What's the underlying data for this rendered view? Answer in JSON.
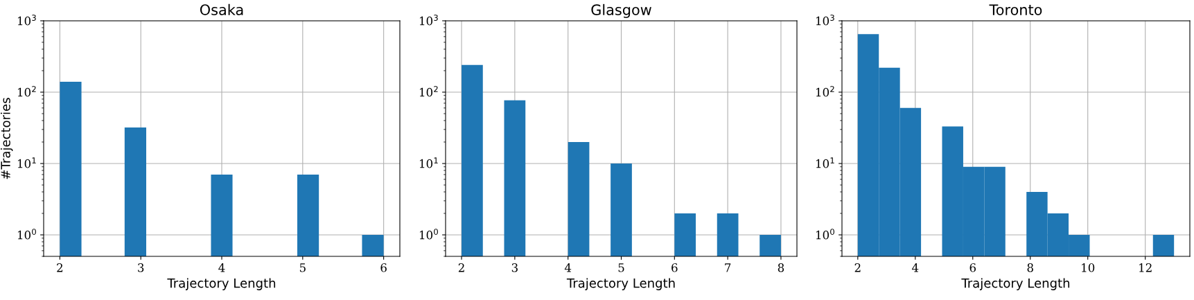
{
  "chart_data": [
    {
      "type": "histogram",
      "title": "Osaka",
      "xlabel": "Trajectory Length",
      "ylabel": "#Trajectories",
      "color": "#1f77b4",
      "log": true,
      "grid": true,
      "bins": [
        2,
        2.267,
        2.533,
        2.8,
        3.067,
        3.333,
        3.6,
        3.867,
        4.133,
        4.4,
        4.667,
        4.933,
        5.2,
        5.467,
        5.733,
        6
      ],
      "values": [
        140,
        null,
        null,
        32,
        null,
        null,
        null,
        7,
        null,
        null,
        null,
        7,
        null,
        null,
        1
      ],
      "xlim": [
        1.8,
        6.2
      ],
      "xticks": [
        2,
        3,
        4,
        5,
        6
      ],
      "ylim": [
        0.5,
        1000
      ],
      "yticks": [
        {
          "value": 1,
          "label": "10$^{0}$"
        },
        {
          "value": 10,
          "label": "10$^{1}$"
        },
        {
          "value": 100,
          "label": "10$^{2}$"
        },
        {
          "value": 1000,
          "label": "10$^{3}$"
        }
      ]
    },
    {
      "type": "histogram",
      "title": "Glasgow",
      "xlabel": "Trajectory Length",
      "color": "#1f77b4",
      "log": true,
      "grid": true,
      "bins": [
        2,
        2.4,
        2.8,
        3.2,
        3.6,
        4,
        4.4,
        4.8,
        5.2,
        5.6,
        6,
        6.4,
        6.8,
        7.2,
        7.6,
        8
      ],
      "values": [
        240,
        null,
        77,
        null,
        null,
        20,
        null,
        10,
        null,
        null,
        2,
        null,
        2,
        null,
        1
      ],
      "xlim": [
        1.7,
        8.3
      ],
      "xticks": [
        2,
        3,
        4,
        5,
        6,
        7,
        8
      ],
      "ylim": [
        0.5,
        1000
      ],
      "yticks": [
        {
          "value": 1,
          "label": "10$^{0}$"
        },
        {
          "value": 10,
          "label": "10$^{1}$"
        },
        {
          "value": 100,
          "label": "10$^{2}$"
        },
        {
          "value": 1000,
          "label": "10$^{3}$"
        }
      ]
    },
    {
      "type": "histogram",
      "title": "Toronto",
      "xlabel": "Trajectory Length",
      "color": "#1f77b4",
      "log": true,
      "grid": true,
      "bins": [
        2,
        2.733,
        3.467,
        4.2,
        4.933,
        5.667,
        6.4,
        7.133,
        7.867,
        8.6,
        9.333,
        10.067,
        10.8,
        11.533,
        12.267,
        13
      ],
      "values": [
        650,
        220,
        60,
        null,
        33,
        9,
        9,
        null,
        4,
        2,
        1,
        null,
        null,
        null,
        1
      ],
      "xlim": [
        1.45,
        13.55
      ],
      "xticks": [
        2,
        4,
        6,
        8,
        10,
        12
      ],
      "ylim": [
        0.5,
        1000
      ],
      "yticks": [
        {
          "value": 1,
          "label": "10$^{0}$"
        },
        {
          "value": 10,
          "label": "10$^{1}$"
        },
        {
          "value": 100,
          "label": "10$^{2}$"
        },
        {
          "value": 1000,
          "label": "10$^{3}$"
        }
      ]
    }
  ]
}
